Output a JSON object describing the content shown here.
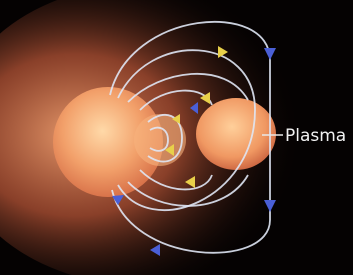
{
  "label": "Plasma"
}
